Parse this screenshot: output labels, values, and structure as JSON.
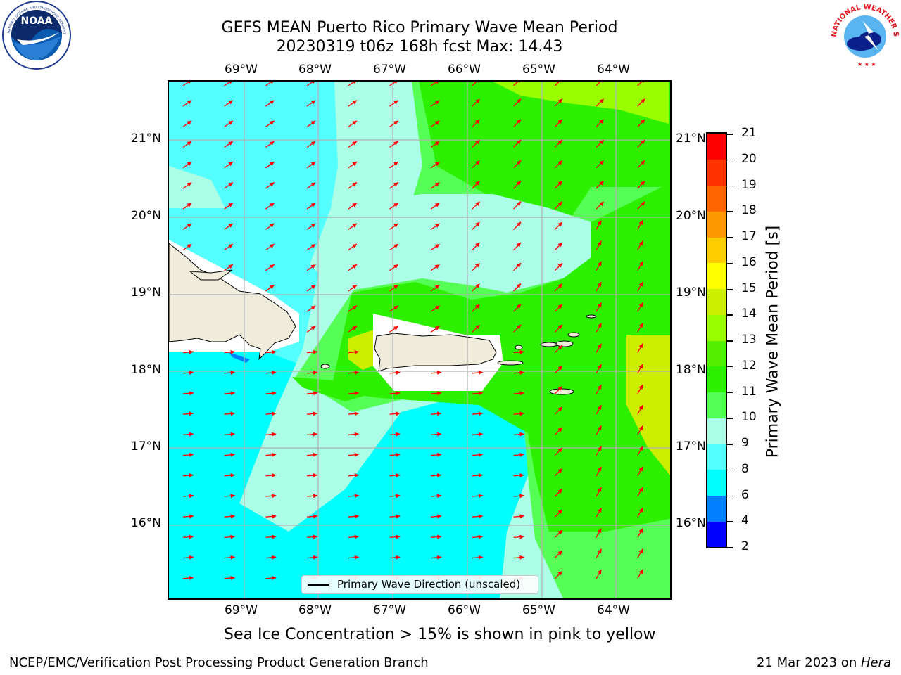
{
  "header": {
    "title_line1": "GEFS MEAN Puerto Rico Primary Wave Mean Period",
    "title_line2": "20230319 t06z 168h fcst   Max: 14.43"
  },
  "logos": {
    "noaa": {
      "name": "noaa-logo",
      "text": "NOAA",
      "ring_text": "NATIONAL OCEANIC AND ATMOSPHERIC ADMINISTRATION · U.S. DEPARTMENT OF COMMERCE"
    },
    "nws": {
      "name": "nws-logo",
      "ring_text": "NATIONAL WEATHER SERVICE"
    }
  },
  "map": {
    "lon_labels": [
      "69°W",
      "68°W",
      "67°W",
      "66°W",
      "65°W",
      "64°W"
    ],
    "lat_labels": [
      "21°N",
      "20°N",
      "19°N",
      "18°N",
      "17°N",
      "16°N"
    ],
    "legend_label": "Primary Wave Direction (unscaled)",
    "land_color": "#efecdc",
    "arrow_color": "#ff0000"
  },
  "colorbar": {
    "title": "Primary Wave Mean Period [s]",
    "levels": [
      "2",
      "4",
      "6",
      "8",
      "9",
      "10",
      "11",
      "12",
      "13",
      "14",
      "15",
      "16",
      "17",
      "18",
      "19",
      "20",
      "21"
    ],
    "colors": [
      "#0000ff",
      "#0080ff",
      "#00ffff",
      "#55ffff",
      "#aaffe6",
      "#55ff55",
      "#2df000",
      "#55ee00",
      "#99ff00",
      "#ccee00",
      "#ffff00",
      "#ffcc00",
      "#ff9900",
      "#ff6600",
      "#ff3300",
      "#ff0000"
    ]
  },
  "caption": "Sea Ice Concentration > 15% is shown in pink to yellow",
  "footer": {
    "left": "NCEP/EMC/Verification Post Processing Product Generation Branch",
    "right_date": "21 Mar 2023 on ",
    "right_host": "Hera"
  }
}
